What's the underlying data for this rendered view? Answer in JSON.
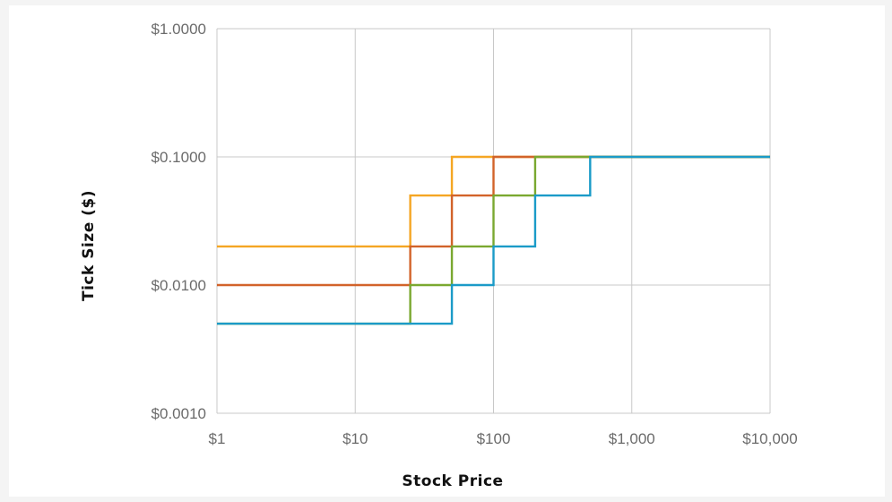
{
  "chart_data": {
    "type": "line",
    "step": true,
    "x_scale": "log",
    "y_scale": "log",
    "xlabel": "Stock Price",
    "ylabel": "Tick Size ($)",
    "xlim": [
      1,
      10000
    ],
    "ylim": [
      0.001,
      1
    ],
    "x_ticks": [
      {
        "value": 1,
        "label": "$1"
      },
      {
        "value": 10,
        "label": "$10"
      },
      {
        "value": 100,
        "label": "$100"
      },
      {
        "value": 1000,
        "label": "$1,000"
      },
      {
        "value": 10000,
        "label": "$10,000"
      }
    ],
    "y_ticks": [
      {
        "value": 0.001,
        "label": "$0.0010"
      },
      {
        "value": 0.01,
        "label": "$0.0100"
      },
      {
        "value": 0.1,
        "label": "$0.1000"
      },
      {
        "value": 1,
        "label": "$1.0000"
      }
    ],
    "grid": true,
    "legend": "none",
    "series": [
      {
        "color": "#f5a623",
        "x": [
          1,
          25,
          50,
          10000
        ],
        "y": [
          0.02,
          0.05,
          0.1,
          0.1
        ]
      },
      {
        "color": "#d2632a",
        "x": [
          1,
          25,
          50,
          100,
          10000
        ],
        "y": [
          0.01,
          0.02,
          0.05,
          0.1,
          0.1
        ]
      },
      {
        "color": "#7aa830",
        "x": [
          1,
          25,
          50,
          100,
          200,
          10000
        ],
        "y": [
          0.005,
          0.01,
          0.02,
          0.05,
          0.1,
          0.1
        ]
      },
      {
        "color": "#1b9bc8",
        "x": [
          1,
          50,
          100,
          200,
          500,
          10000
        ],
        "y": [
          0.005,
          0.01,
          0.02,
          0.05,
          0.1,
          0.1
        ]
      }
    ]
  }
}
